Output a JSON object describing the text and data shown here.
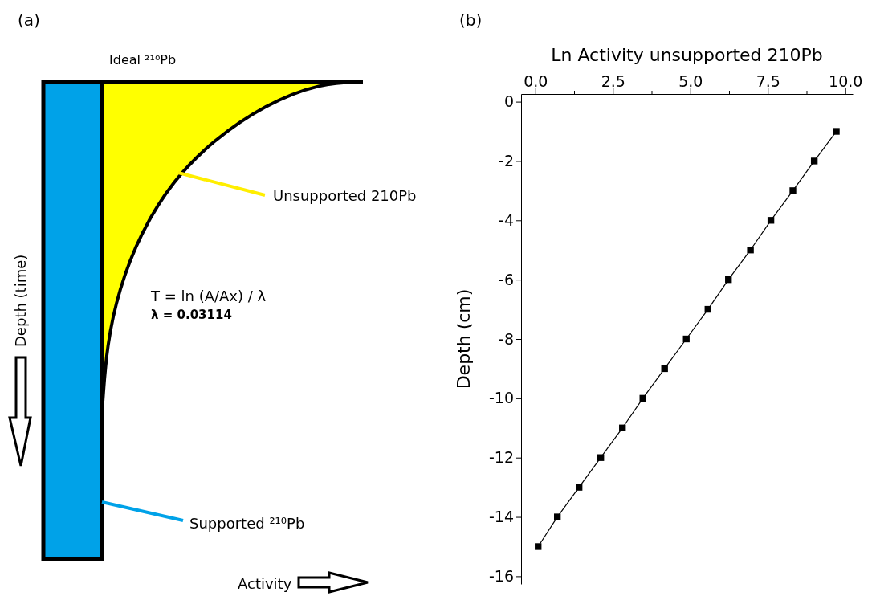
{
  "chart_data": [
    {
      "type": "other",
      "title": "(a)",
      "xlabel": "Activity",
      "ylabel": "Depth (time)",
      "annotations": [
        "Ideal ²¹⁰Pb",
        "Unsupported 210Pb",
        "T = ln (A/Ax) / λ",
        "λ = 0.03114",
        "Supported ²¹⁰Pb"
      ]
    },
    {
      "type": "line",
      "title": "(b)",
      "xlabel": "Ln Activity unsupported 210Pb",
      "ylabel": "Depth (cm)",
      "marker": "square",
      "line_style": "solid",
      "grid": false,
      "xlim": [
        -0.46,
        10.24
      ],
      "ylim": [
        -16.26,
        0.26
      ],
      "xticks": [
        {
          "value": 0,
          "label": "0.0"
        },
        {
          "value": 1.25,
          "label": null
        },
        {
          "value": 2.5,
          "label": "2.5"
        },
        {
          "value": 3.75,
          "label": null
        },
        {
          "value": 5,
          "label": "5.0"
        },
        {
          "value": 6.25,
          "label": null
        },
        {
          "value": 7.5,
          "label": "7.5"
        },
        {
          "value": 8.75,
          "label": null
        },
        {
          "value": 10,
          "label": "10.0"
        }
      ],
      "yticks": [
        0,
        -2,
        -4,
        -6,
        -8,
        -10,
        -12,
        -14,
        -16
      ],
      "series": [
        {
          "color": "#000000",
          "x": [
            9.71,
            9.0,
            8.31,
            7.6,
            6.94,
            6.23,
            5.57,
            4.87,
            4.17,
            3.47,
            2.81,
            2.11,
            1.41,
            0.71,
            0.09
          ],
          "values": [
            -1,
            -2,
            -3,
            -4,
            -5,
            -6,
            -7,
            -8,
            -9,
            -10,
            -11,
            -12,
            -13,
            -14,
            -15
          ]
        }
      ]
    }
  ]
}
